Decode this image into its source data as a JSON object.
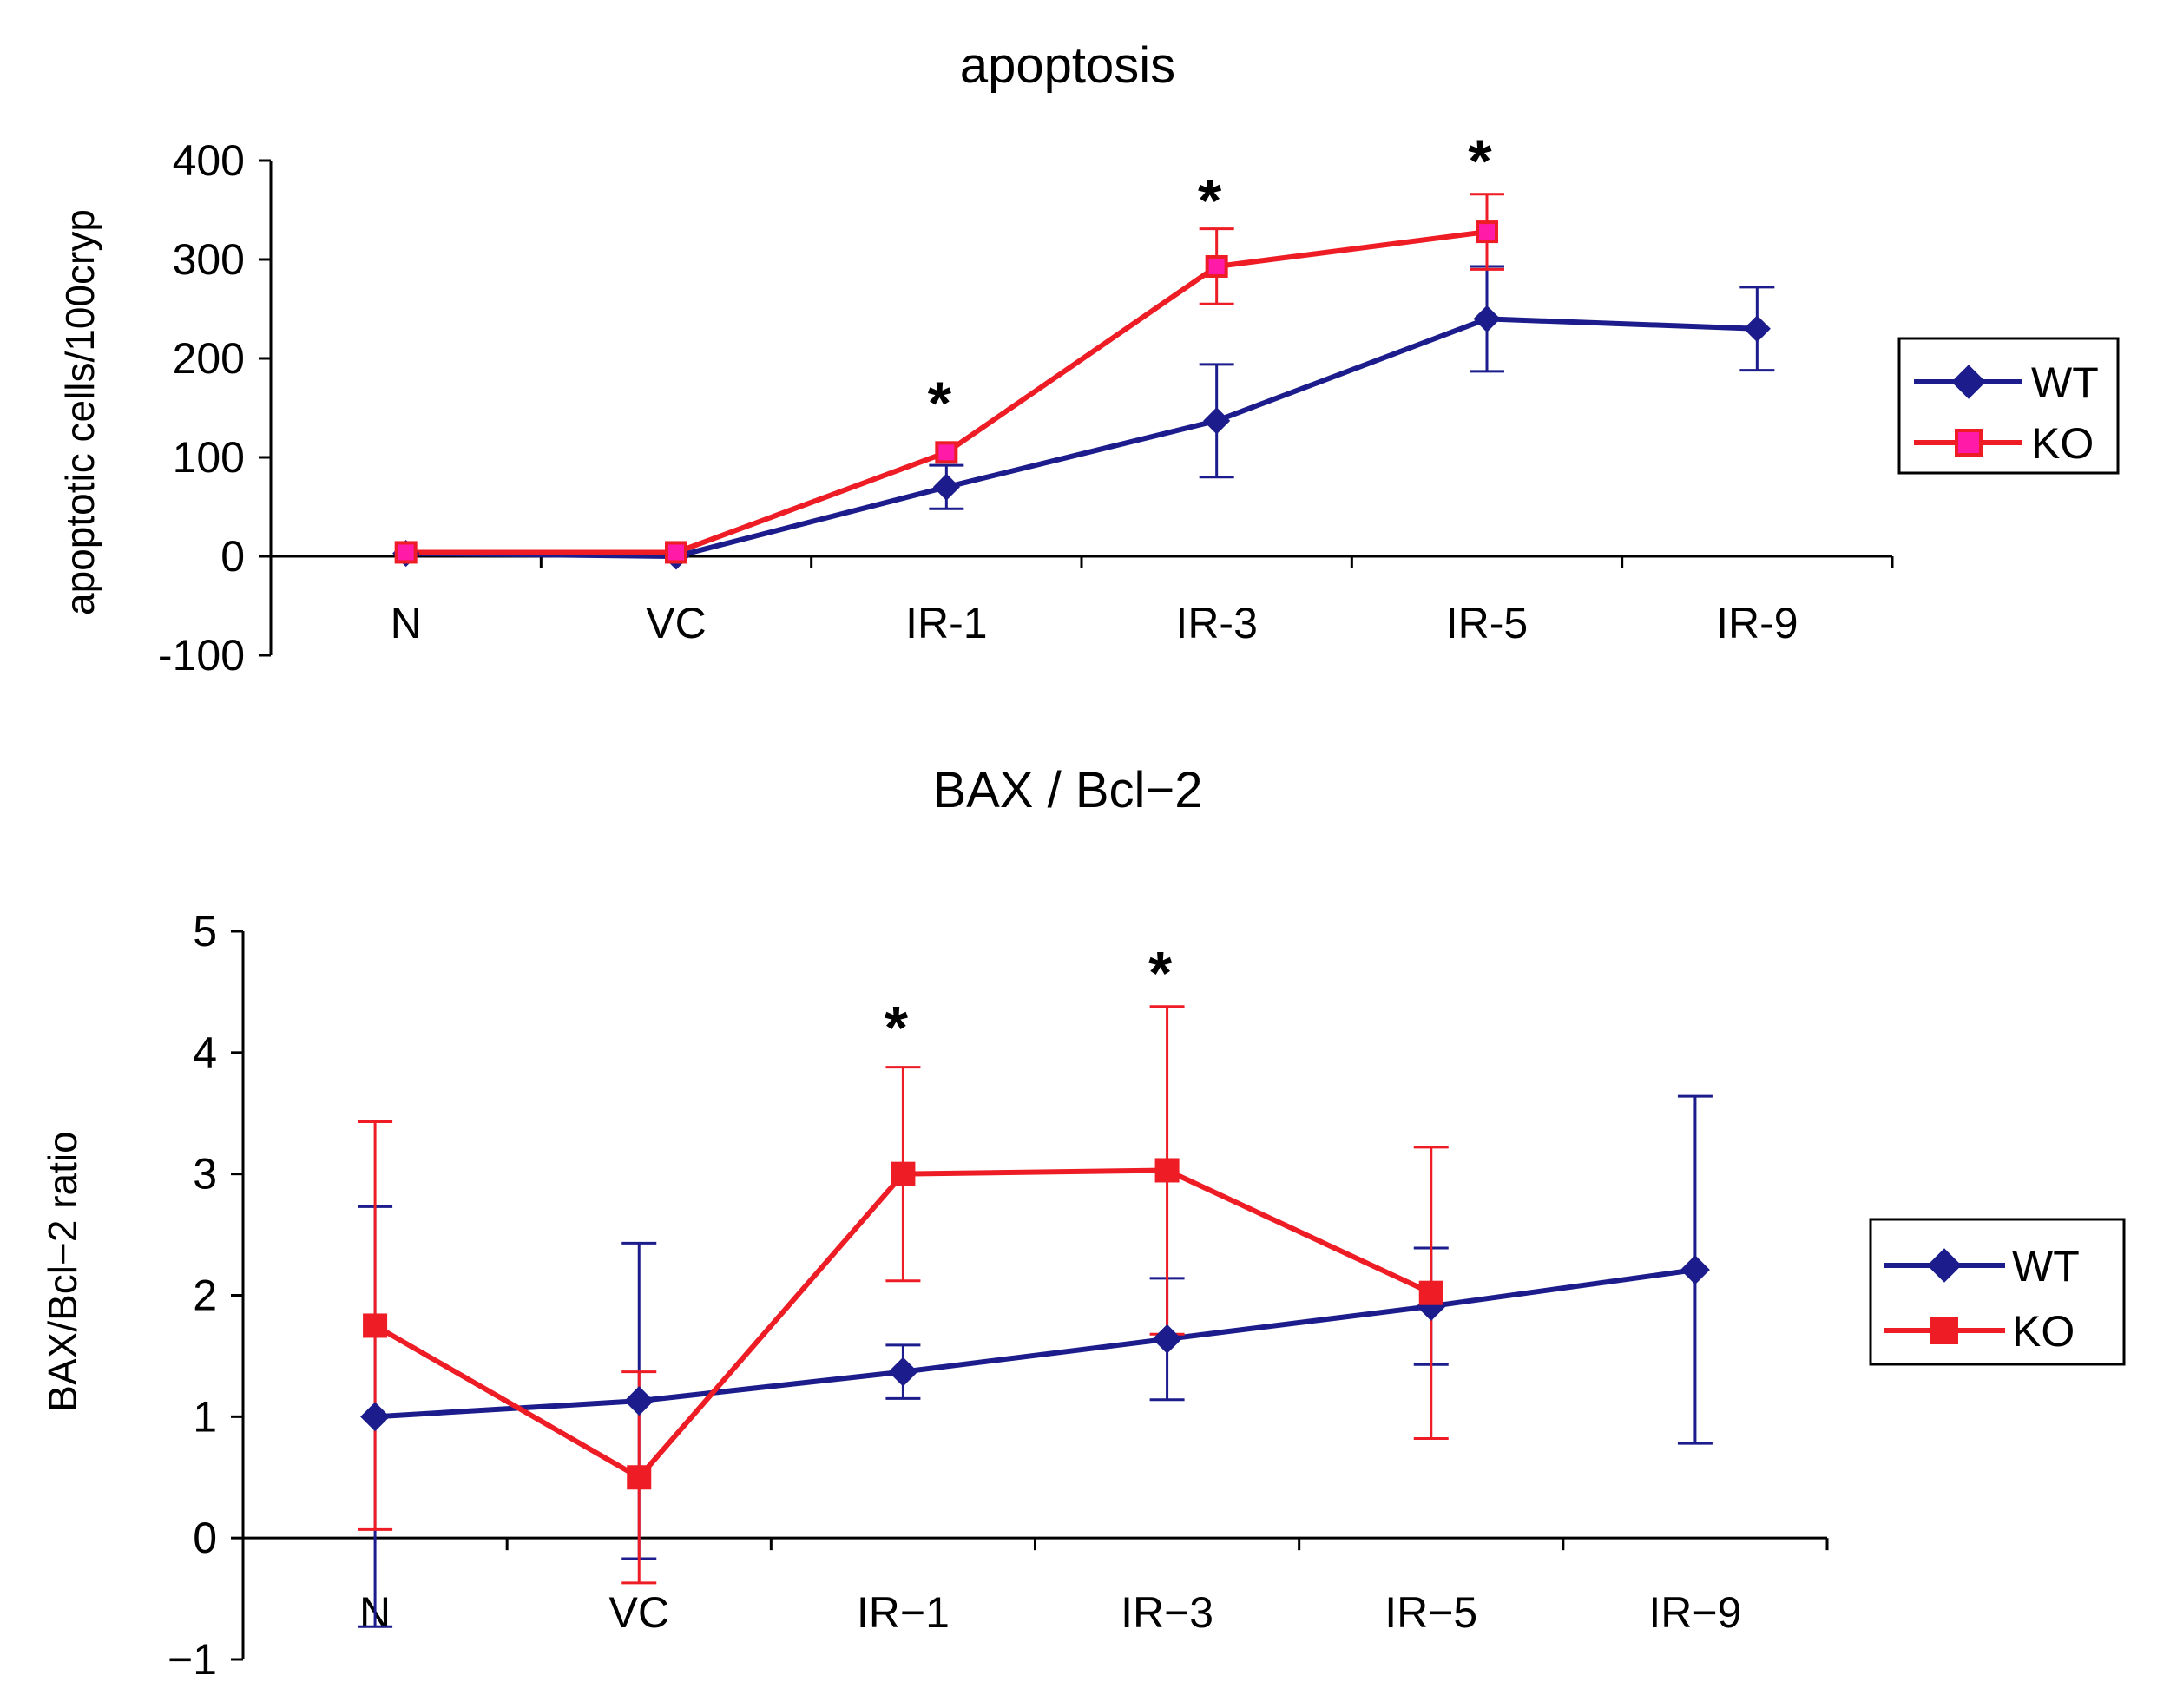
{
  "colors": {
    "wt": "#1c1c8c",
    "ko": "#ee1c24",
    "ko_marker_fill_top": "#ff1aa8",
    "axis": "#000000"
  },
  "chart_data": [
    {
      "type": "line",
      "title": "apoptosis",
      "ylabel": "apoptotic cells/100cryp",
      "xlabel": "",
      "categories": [
        "N",
        "VC",
        "IR-1",
        "IR-3",
        "IR-5",
        "IR-9"
      ],
      "ylim": [
        -100,
        400
      ],
      "yticks": [
        "-100",
        "0",
        "100",
        "200",
        "300",
        "400"
      ],
      "yticks_values": [
        -100,
        0,
        100,
        200,
        300,
        400
      ],
      "grid": false,
      "legend_position": "right",
      "series": [
        {
          "name": "WT",
          "marker": "diamond",
          "values": [
            3,
            0,
            70,
            137,
            240,
            230
          ],
          "err": [
            0,
            0,
            22,
            57,
            53,
            42
          ]
        },
        {
          "name": "KO",
          "marker": "square",
          "values": [
            4,
            4,
            105,
            293,
            328,
            null
          ],
          "err": [
            0,
            0,
            0,
            38,
            38,
            null
          ]
        }
      ],
      "annotations": [
        {
          "text": "*",
          "category": "IR-1",
          "y": 160
        },
        {
          "text": "*",
          "category": "IR-3",
          "y": 365
        },
        {
          "text": "*",
          "category": "IR-5",
          "y": 405
        }
      ]
    },
    {
      "type": "line",
      "title": "BAX / Bcl−2",
      "ylabel": "BAX/Bcl−2 ratio",
      "xlabel": "",
      "categories": [
        "N",
        "VC",
        "IR−1",
        "IR−3",
        "IR−5",
        "IR−9"
      ],
      "ylim": [
        -1,
        5
      ],
      "yticks": [
        "−1",
        "0",
        "1",
        "2",
        "3",
        "4",
        "5"
      ],
      "yticks_values": [
        -1,
        0,
        1,
        2,
        3,
        4,
        5
      ],
      "grid": false,
      "legend_position": "right",
      "series": [
        {
          "name": "WT",
          "marker": "diamond",
          "values": [
            1.0,
            1.13,
            1.37,
            1.64,
            1.91,
            2.21
          ],
          "err": [
            1.73,
            1.3,
            0.22,
            0.5,
            0.48,
            1.43
          ]
        },
        {
          "name": "KO",
          "marker": "square",
          "values": [
            1.75,
            0.5,
            3.0,
            3.03,
            2.02,
            null
          ],
          "err": [
            1.68,
            0.87,
            0.88,
            1.35,
            1.2,
            null
          ]
        }
      ],
      "annotations": [
        {
          "text": "*",
          "category": "IR−1",
          "y": 4.25
        },
        {
          "text": "*",
          "category": "IR−3",
          "y": 4.7
        }
      ]
    }
  ]
}
